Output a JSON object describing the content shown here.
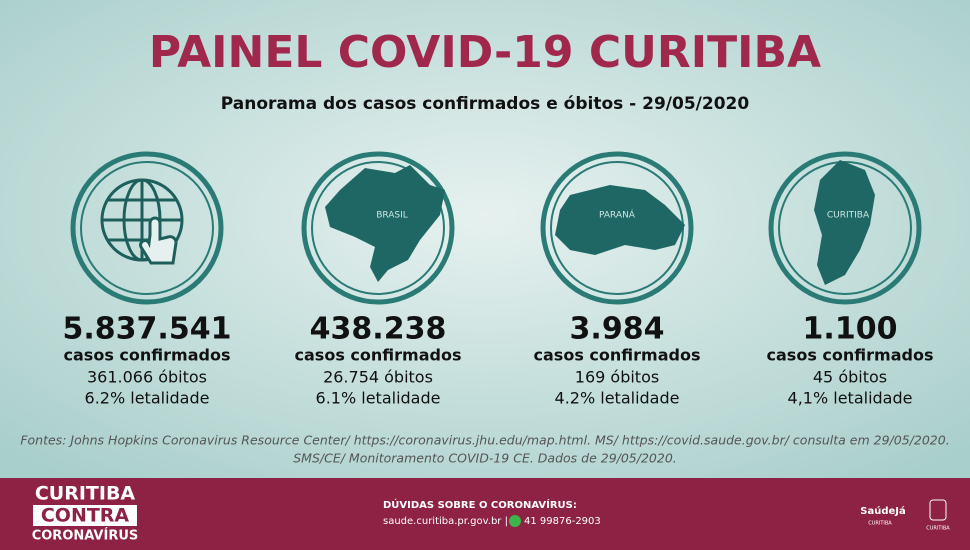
{
  "header": {
    "title": "PAINEL COVID-19 CURITIBA",
    "subtitle": "Panorama dos casos confirmados e óbitos - 29/05/2020"
  },
  "panels": [
    {
      "cases": "5.837.541",
      "cases_label": "casos confirmados",
      "deaths": "361.066 óbitos",
      "lethality": "6.2% letalidade"
    },
    {
      "map_label": "BRASIL",
      "cases": "438.238",
      "cases_label": "casos confirmados",
      "deaths": "26.754 óbitos",
      "lethality": "6.1% letalidade"
    },
    {
      "map_label": "PARANÁ",
      "cases": "3.984",
      "cases_label": "casos confirmados",
      "deaths": "169 óbitos",
      "lethality": "4.2% letalidade"
    },
    {
      "map_label": "CURITIBA",
      "cases": "1.100",
      "cases_label": "casos confirmados",
      "deaths": "45 óbitos",
      "lethality": "4,1% letalidade"
    }
  ],
  "sources": [
    "Fontes: Johns Hopkins Coronavirus Resource Center/ https://coronavirus.jhu.edu/map.html. MS/ https://covid.saude.gov.br/ consulta em 29/05/2020.",
    "SMS/CE/ Monitoramento COVID-19 CE. Dados de 29/05/2020."
  ],
  "footer": {
    "campaign": [
      "CURITIBA",
      "CONTRA",
      "CORONAVÍRUS"
    ],
    "questions_title": "DÚVIDAS SOBRE O CORONAVÍRUS:",
    "website": "saude.curitiba.pr.gov.br |",
    "phone": "41 99876-2903",
    "logo_text": "SaúdeJá",
    "logo_sub": "CURITIBA",
    "crest_sub": "CURITIBA"
  }
}
